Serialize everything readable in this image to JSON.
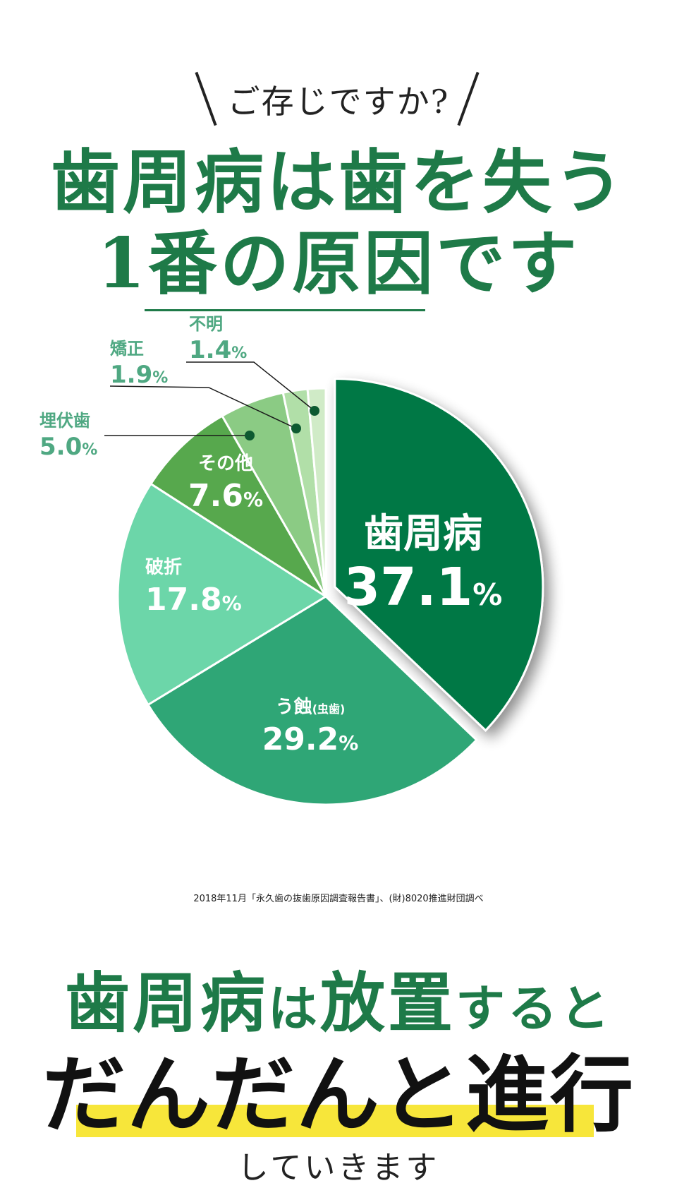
{
  "header": {
    "kicker": "ご存じですか?",
    "headline_line1": "歯周病は歯を失う",
    "headline_line2": "1番の原因です"
  },
  "chart_data": {
    "type": "pie",
    "unit": "%",
    "slices": [
      {
        "label": "歯周病",
        "value": 37.1,
        "value_text": "37.1",
        "color": "#037844"
      },
      {
        "label": "う蝕",
        "sublabel": "(虫歯)",
        "value": 29.2,
        "value_text": "29.2",
        "color": "#2fa676"
      },
      {
        "label": "破折",
        "value": 17.8,
        "value_text": "17.8",
        "color": "#6cd6a9"
      },
      {
        "label": "その他",
        "value": 7.6,
        "value_text": "7.6",
        "color": "#57a84d"
      },
      {
        "label": "埋伏歯",
        "value": 5.0,
        "value_text": "5.0",
        "color": "#8bcb84"
      },
      {
        "label": "矯正",
        "value": 1.9,
        "value_text": "1.9",
        "color": "#b1dfa8"
      },
      {
        "label": "不明",
        "value": 1.4,
        "value_text": "1.4",
        "color": "#d0ebc7"
      }
    ],
    "exploded": "歯周病"
  },
  "source_note": "2018年11月「永久歯の抜歯原因調査報告書」、(財)8020推進財団調べ",
  "bottom": {
    "line1_big": "歯周病",
    "line1_mid": "は",
    "line1_big2": "放置",
    "line1_tail": "すると",
    "line2": "だんだんと進行",
    "line3": "していきます"
  },
  "colors": {
    "brand_green": "#1e7a48",
    "highlight_yellow": "#f7e63a"
  }
}
